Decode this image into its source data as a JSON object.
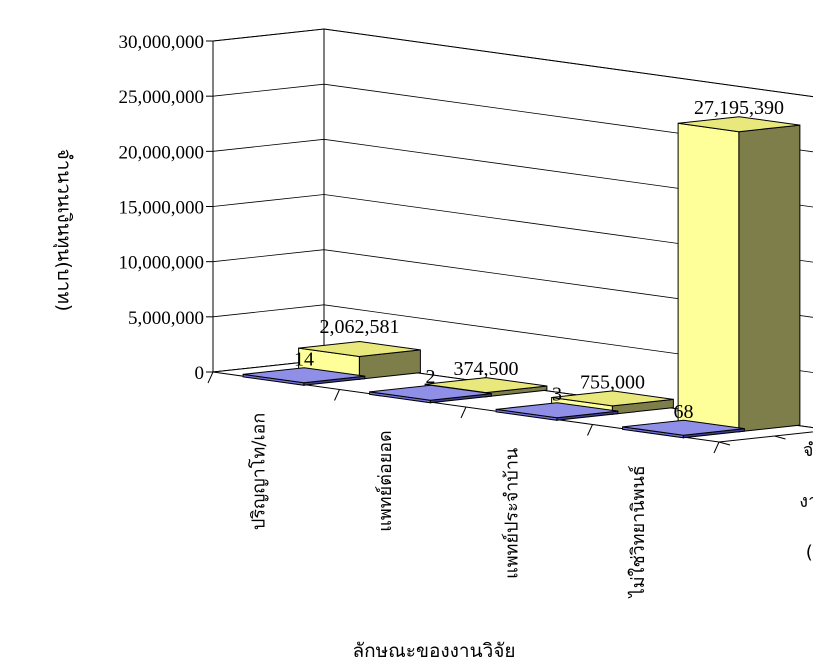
{
  "chart_data": {
    "type": "bar",
    "subtype": "3d-column",
    "categories": [
      "ปริญญาโท/เอก",
      "แพทย์ต่อยอด",
      "แพทย์ประจำบ้าน",
      "ไม่ใช่วิทยานิพนธ์"
    ],
    "series": [
      {
        "name": "จำนวนงานวิจัย (เรื่อง)",
        "name_lines": [
          "จำนวน",
          "งานวิจัย",
          "(เรื่อง)"
        ],
        "values": [
          14,
          2,
          3,
          68
        ],
        "labels": [
          "14",
          "2",
          "3",
          "68"
        ],
        "color": "#6f6fd6"
      },
      {
        "name": "",
        "values": [
          2062581,
          374500,
          755000,
          27195390
        ],
        "labels": [
          "2,062,581",
          "374,500",
          "755,000",
          "27,195,390"
        ],
        "color": "#ffff99"
      }
    ],
    "xlabel": "ลักษณะของงานวิจัย",
    "ylabel": "จำนวนเงินทุน(บาท)",
    "ylim": [
      0,
      30000000
    ],
    "yticks": [
      "0",
      "5,000,000",
      "10,000,000",
      "15,000,000",
      "20,000,000",
      "25,000,000",
      "30,000,000"
    ],
    "grid": true,
    "legend": "none"
  }
}
